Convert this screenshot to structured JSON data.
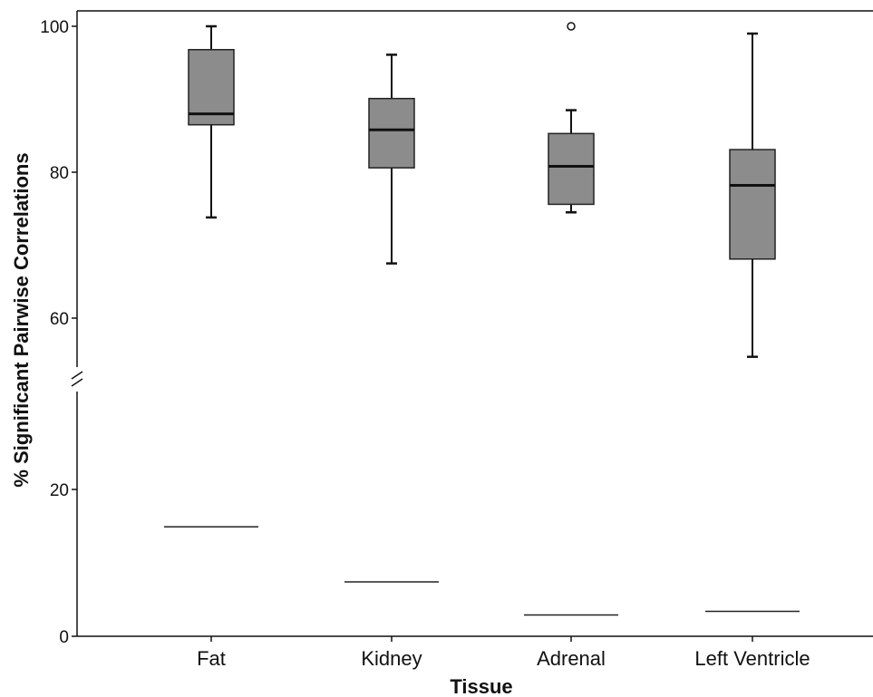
{
  "chart_data": {
    "type": "box",
    "title": "",
    "xlabel": "Tissue",
    "ylabel": "% Significant  Pairwise Correlations",
    "categories": [
      "Fat",
      "Kidney",
      "Adrenal",
      "Left Ventricle"
    ],
    "y_axis": {
      "broken": true,
      "lower_segment": [
        0,
        20
      ],
      "upper_segment": [
        55,
        100
      ],
      "ticks": [
        0,
        20,
        60,
        80,
        100
      ]
    },
    "boxes": [
      {
        "category": "Fat",
        "whisker_low": 73.8,
        "q1": 86.5,
        "median": 88,
        "q3": 96.8,
        "whisker_high": 100,
        "outliers": []
      },
      {
        "category": "Kidney",
        "whisker_low": 67.5,
        "q1": 80.6,
        "median": 85.8,
        "q3": 90.1,
        "whisker_high": 96.1,
        "outliers": []
      },
      {
        "category": "Adrenal",
        "whisker_low": 74.5,
        "q1": 75.6,
        "median": 80.8,
        "q3": 85.3,
        "whisker_high": 88.5,
        "outliers": [
          100
        ]
      },
      {
        "category": "Left Ventricle",
        "whisker_low": 54.7,
        "q1": 68.1,
        "median": 78.2,
        "q3": 83.1,
        "whisker_high": 99,
        "outliers": []
      }
    ],
    "reference_lines": [
      {
        "category": "Fat",
        "value": 14.9
      },
      {
        "category": "Kidney",
        "value": 7.4
      },
      {
        "category": "Adrenal",
        "value": 2.9
      },
      {
        "category": "Left Ventricle",
        "value": 3.4
      }
    ],
    "colors": {
      "box_fill": "#8c8c8c",
      "line": "#111111"
    }
  }
}
